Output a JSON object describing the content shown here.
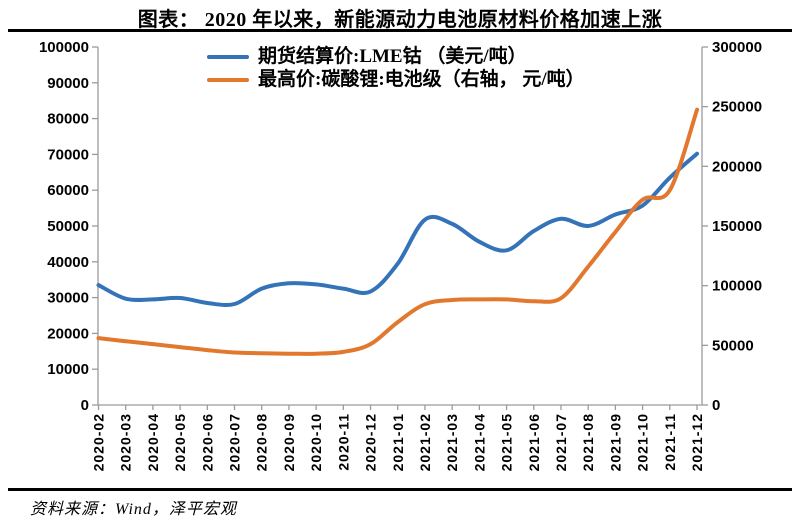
{
  "title": "图表： 2020 年以来，新能源动力电池原材料价格加速上涨",
  "source": "资料来源：Wind，泽平宏观",
  "chart_data": {
    "type": "line",
    "smooth": true,
    "grid": false,
    "legend_position": "top-center",
    "axis_color": "#9b9b9b",
    "x": [
      "2020-02",
      "2020-03",
      "2020-04",
      "2020-05",
      "2020-06",
      "2020-07",
      "2020-08",
      "2020-09",
      "2020-10",
      "2020-11",
      "2020-12",
      "2021-01",
      "2021-02",
      "2021-03",
      "2021-04",
      "2021-05",
      "2021-06",
      "2021-07",
      "2021-08",
      "2021-09",
      "2021-10",
      "2021-11",
      "2021-12"
    ],
    "series": [
      {
        "name": "期货结算价:LME钴 （美元/吨）",
        "axis": "left",
        "color": "#3573b9",
        "values": [
          33500,
          29700,
          29500,
          29900,
          28500,
          28200,
          32500,
          34000,
          33700,
          32500,
          31700,
          39500,
          51800,
          50600,
          45600,
          43200,
          48600,
          52000,
          50000,
          53200,
          55700,
          63500,
          70200
        ]
      },
      {
        "name": "最高价:碳酸锂:电池级（右轴， 元/吨）",
        "axis": "right",
        "color": "#e2772e",
        "values": [
          56000,
          53500,
          51000,
          48500,
          46000,
          44000,
          43300,
          43000,
          43000,
          44500,
          51000,
          69500,
          84500,
          88000,
          88500,
          88500,
          87000,
          89500,
          116000,
          145000,
          172000,
          180000,
          247500
        ]
      }
    ],
    "left_axis": {
      "min": 0,
      "max": 100000,
      "step": 10000,
      "tick_labels": [
        "0",
        "10000",
        "20000",
        "30000",
        "40000",
        "50000",
        "60000",
        "70000",
        "80000",
        "90000",
        "100000"
      ]
    },
    "right_axis": {
      "min": 0,
      "max": 300000,
      "step": 50000,
      "tick_labels": [
        "0",
        "50000",
        "100000",
        "150000",
        "200000",
        "250000",
        "300000"
      ]
    }
  }
}
